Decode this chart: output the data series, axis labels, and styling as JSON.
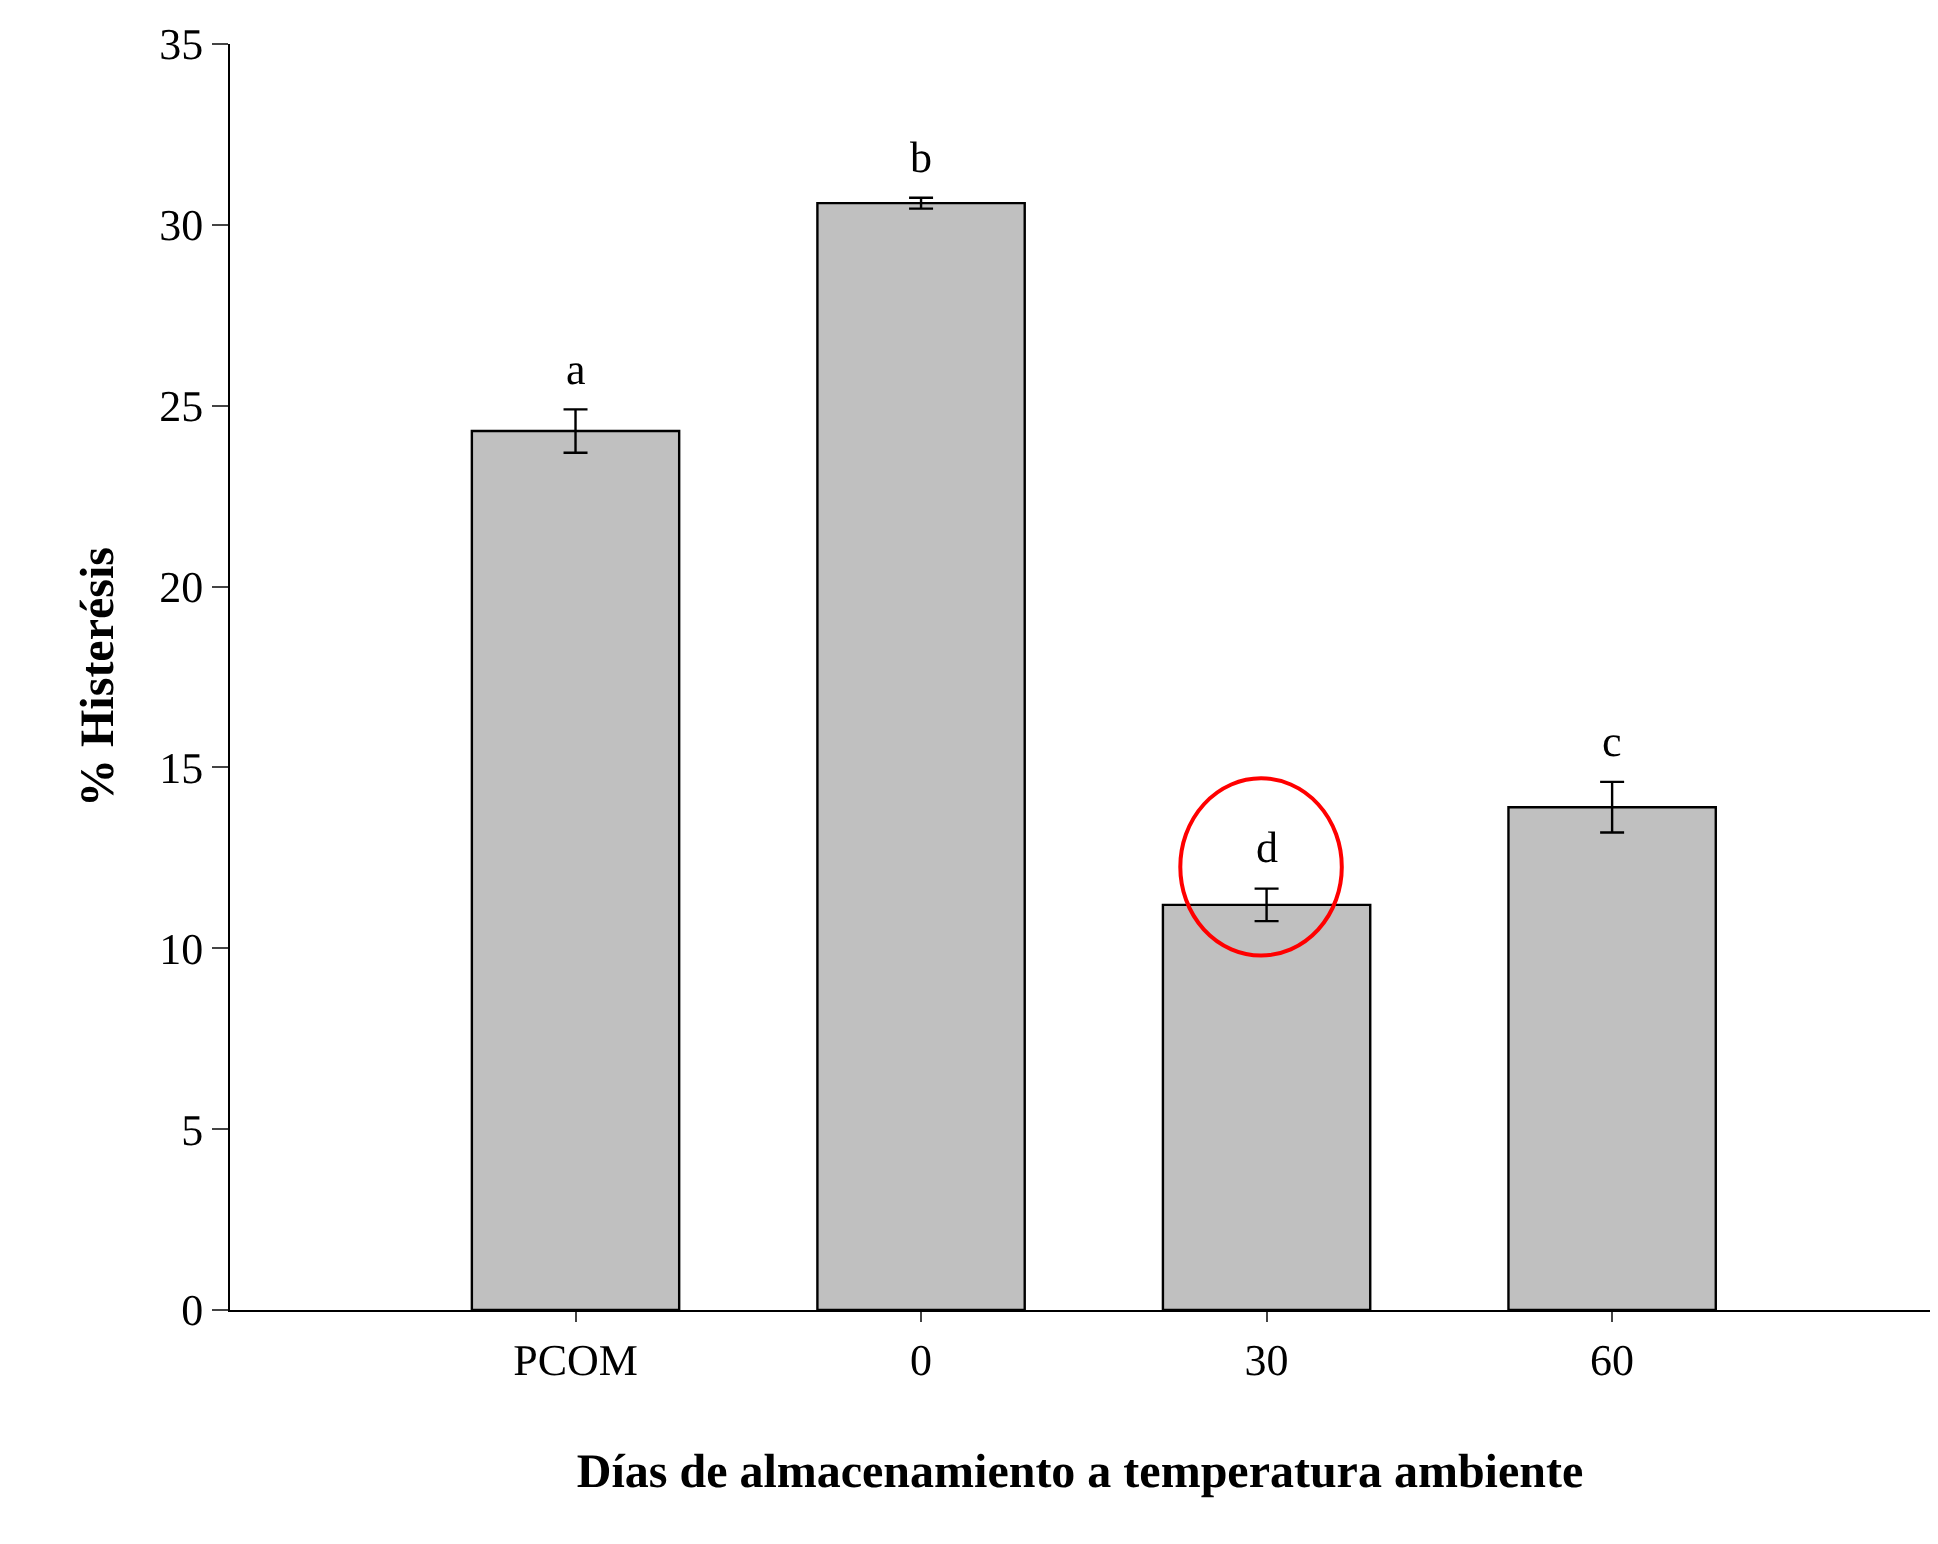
{
  "chart_data": {
    "type": "bar",
    "xlabel": "Días de almacenamiento a temperatura ambiente",
    "ylabel": "% Histerésis",
    "categories": [
      "PCOM",
      "0",
      "30",
      "60"
    ],
    "values": [
      24.3,
      30.6,
      11.2,
      13.9
    ],
    "errors": [
      0.6,
      0.15,
      0.45,
      0.7
    ],
    "color": "#c0c0c0",
    "ylim": [
      0,
      35
    ],
    "yticks": [
      0,
      5,
      10,
      15,
      20,
      25,
      30,
      35
    ],
    "value_labels": [
      "a",
      "b",
      "d",
      "c"
    ],
    "legend": false
  }
}
